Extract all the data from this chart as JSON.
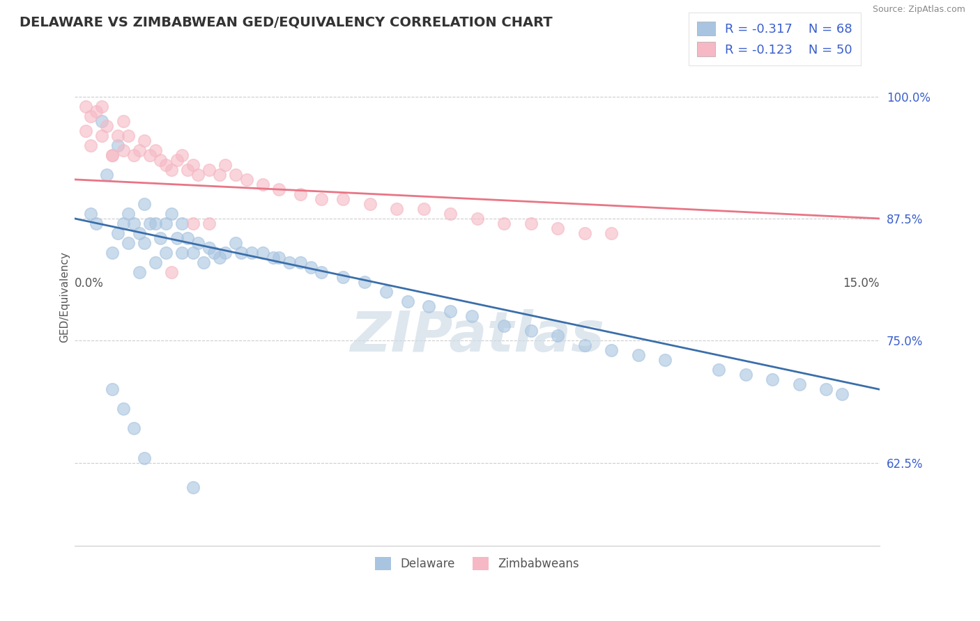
{
  "title": "DELAWARE VS ZIMBABWEAN GED/EQUIVALENCY CORRELATION CHART",
  "source": "Source: ZipAtlas.com",
  "ylabel": "GED/Equivalency",
  "ytick_labels": [
    "62.5%",
    "75.0%",
    "87.5%",
    "100.0%"
  ],
  "ytick_values": [
    0.625,
    0.75,
    0.875,
    1.0
  ],
  "xmin": 0.0,
  "xmax": 0.15,
  "ymin": 0.54,
  "ymax": 1.05,
  "legend_r1": "R = -0.317",
  "legend_n1": "N = 68",
  "legend_r2": "R = -0.123",
  "legend_n2": "N = 50",
  "blue_color": "#a8c4e0",
  "pink_color": "#f5b8c4",
  "blue_line_color": "#3a6eaa",
  "pink_line_color": "#e87585",
  "legend_text_color": "#3a5fcd",
  "watermark_color": "#d0dde8",
  "background_color": "#ffffff",
  "grid_color": "#cccccc",
  "blue_trend_x0": 0.0,
  "blue_trend_y0": 0.875,
  "blue_trend_x1": 0.15,
  "blue_trend_y1": 0.7,
  "pink_trend_x0": 0.0,
  "pink_trend_y0": 0.915,
  "pink_trend_x1": 0.15,
  "pink_trend_y1": 0.875,
  "delaware_x": [
    0.003,
    0.004,
    0.005,
    0.006,
    0.007,
    0.008,
    0.008,
    0.009,
    0.01,
    0.01,
    0.011,
    0.012,
    0.012,
    0.013,
    0.013,
    0.014,
    0.015,
    0.015,
    0.016,
    0.017,
    0.017,
    0.018,
    0.019,
    0.02,
    0.02,
    0.021,
    0.022,
    0.023,
    0.024,
    0.025,
    0.026,
    0.027,
    0.028,
    0.03,
    0.031,
    0.033,
    0.035,
    0.037,
    0.038,
    0.04,
    0.042,
    0.044,
    0.046,
    0.05,
    0.054,
    0.058,
    0.062,
    0.066,
    0.07,
    0.074,
    0.08,
    0.085,
    0.09,
    0.095,
    0.1,
    0.105,
    0.11,
    0.12,
    0.125,
    0.13,
    0.135,
    0.14,
    0.143,
    0.007,
    0.009,
    0.011,
    0.013,
    0.022
  ],
  "delaware_y": [
    0.88,
    0.87,
    0.975,
    0.92,
    0.84,
    0.95,
    0.86,
    0.87,
    0.88,
    0.85,
    0.87,
    0.86,
    0.82,
    0.89,
    0.85,
    0.87,
    0.83,
    0.87,
    0.855,
    0.87,
    0.84,
    0.88,
    0.855,
    0.87,
    0.84,
    0.855,
    0.84,
    0.85,
    0.83,
    0.845,
    0.84,
    0.835,
    0.84,
    0.85,
    0.84,
    0.84,
    0.84,
    0.835,
    0.835,
    0.83,
    0.83,
    0.825,
    0.82,
    0.815,
    0.81,
    0.8,
    0.79,
    0.785,
    0.78,
    0.775,
    0.765,
    0.76,
    0.755,
    0.745,
    0.74,
    0.735,
    0.73,
    0.72,
    0.715,
    0.71,
    0.705,
    0.7,
    0.695,
    0.7,
    0.68,
    0.66,
    0.63,
    0.6
  ],
  "zimbabwe_x": [
    0.002,
    0.002,
    0.003,
    0.003,
    0.004,
    0.005,
    0.006,
    0.007,
    0.008,
    0.009,
    0.009,
    0.01,
    0.011,
    0.012,
    0.013,
    0.014,
    0.015,
    0.016,
    0.017,
    0.018,
    0.019,
    0.02,
    0.021,
    0.022,
    0.023,
    0.025,
    0.027,
    0.028,
    0.03,
    0.032,
    0.035,
    0.038,
    0.042,
    0.046,
    0.05,
    0.055,
    0.06,
    0.065,
    0.07,
    0.075,
    0.08,
    0.085,
    0.09,
    0.095,
    0.1,
    0.018,
    0.022,
    0.025,
    0.005,
    0.007
  ],
  "zimbabwe_y": [
    0.99,
    0.965,
    0.98,
    0.95,
    0.985,
    0.96,
    0.97,
    0.94,
    0.96,
    0.945,
    0.975,
    0.96,
    0.94,
    0.945,
    0.955,
    0.94,
    0.945,
    0.935,
    0.93,
    0.925,
    0.935,
    0.94,
    0.925,
    0.93,
    0.92,
    0.925,
    0.92,
    0.93,
    0.92,
    0.915,
    0.91,
    0.905,
    0.9,
    0.895,
    0.895,
    0.89,
    0.885,
    0.885,
    0.88,
    0.875,
    0.87,
    0.87,
    0.865,
    0.86,
    0.86,
    0.82,
    0.87,
    0.87,
    0.99,
    0.94
  ]
}
